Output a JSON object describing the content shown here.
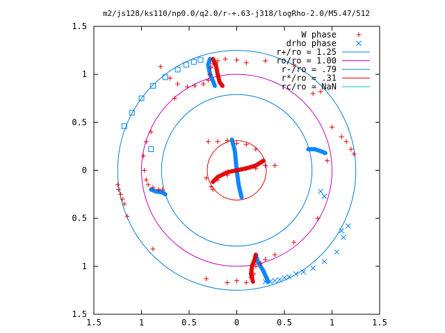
{
  "chart_data": {
    "type": "scatter",
    "title": "m2/js128/ks110/np0.0/q2.0/r-+.63-j318/logRho-2.0/M5.47/512",
    "xlim": [
      -1.5,
      1.5
    ],
    "ylim": [
      -1.5,
      1.5
    ],
    "x_ticks": [
      -1.5,
      -1,
      -0.5,
      0,
      0.5,
      1,
      1.5
    ],
    "x_tick_labels": [
      "1.5",
      "1",
      "0.5",
      "0",
      "0.5",
      "1",
      "1.5"
    ],
    "y_ticks": [
      1.5,
      1,
      0.5,
      0,
      -0.5,
      -1,
      -1.5
    ],
    "y_tick_labels": [
      "1.5",
      "1",
      "0.5",
      "0",
      "0.5",
      "1",
      "1.5"
    ],
    "grid": false,
    "legend_position": "top-right",
    "series": [
      {
        "name": "W phase",
        "marker": "plus",
        "color": "#e00000",
        "points": [
          [
            -0.8,
            1.08
          ],
          [
            -0.7,
            0.96
          ],
          [
            -0.62,
            0.9
          ],
          [
            -0.52,
            0.87
          ],
          [
            -0.44,
            0.88
          ],
          [
            -0.35,
            0.9
          ],
          [
            -0.3,
            0.94
          ],
          [
            -0.28,
            1.0
          ],
          [
            -0.27,
            1.07
          ],
          [
            -0.25,
            1.11
          ],
          [
            -0.2,
            1.14
          ],
          [
            -0.12,
            1.16
          ],
          [
            0.0,
            1.15
          ],
          [
            0.1,
            1.12
          ],
          [
            0.3,
            1.14
          ],
          [
            0.6,
            1.1
          ],
          [
            0.8,
            0.8
          ],
          [
            0.88,
            0.82
          ],
          [
            -0.65,
            0.75
          ],
          [
            -0.9,
            0.4
          ],
          [
            -0.95,
            0.3
          ],
          [
            -0.98,
            0.15
          ],
          [
            -0.97,
            0.0
          ],
          [
            -0.95,
            -0.1
          ],
          [
            -0.93,
            -0.15
          ],
          [
            -0.88,
            -0.18
          ],
          [
            -0.82,
            -0.2
          ],
          [
            -0.78,
            -0.2
          ],
          [
            -1.25,
            -0.15
          ],
          [
            -1.24,
            -0.2
          ],
          [
            -1.22,
            -0.25
          ],
          [
            -1.2,
            -0.3
          ],
          [
            -1.18,
            -0.35
          ],
          [
            -1.15,
            -0.48
          ],
          [
            -0.88,
            -0.82
          ],
          [
            -0.32,
            -1.13
          ],
          [
            -0.1,
            -1.17
          ],
          [
            0.0,
            -1.15
          ],
          [
            0.1,
            -1.17
          ],
          [
            0.15,
            -1.12
          ],
          [
            0.18,
            -1.08
          ],
          [
            0.2,
            -1.0
          ],
          [
            0.25,
            -0.97
          ],
          [
            0.3,
            -0.93
          ],
          [
            0.4,
            -0.88
          ],
          [
            0.6,
            -0.75
          ],
          [
            0.85,
            -0.5
          ],
          [
            1.0,
            0.45
          ],
          [
            1.1,
            0.35
          ],
          [
            1.15,
            0.3
          ],
          [
            1.2,
            0.22
          ],
          [
            1.23,
            0.17
          ],
          [
            0.95,
            0.1
          ],
          [
            -0.3,
            0.3
          ],
          [
            -0.2,
            0.3
          ],
          [
            -0.1,
            0.31
          ],
          [
            0.0,
            0.28
          ],
          [
            0.1,
            0.27
          ],
          [
            0.2,
            0.22
          ],
          [
            0.28,
            0.1
          ],
          [
            0.3,
            0.05
          ],
          [
            0.2,
            0.02
          ],
          [
            0.1,
            0.02
          ],
          [
            0.0,
            0.0
          ],
          [
            -0.1,
            -0.05
          ],
          [
            -0.2,
            -0.1
          ],
          [
            -0.25,
            -0.12
          ],
          [
            -0.27,
            -0.17
          ],
          [
            -0.25,
            -0.2
          ],
          [
            -0.32,
            -0.08
          ],
          [
            0.4,
            0.05
          ]
        ]
      },
      {
        "name": "drho phase",
        "marker": "cross",
        "color": "#0080ff",
        "points": [
          [
            0.3,
            -1.16
          ],
          [
            0.35,
            -1.16
          ],
          [
            0.4,
            -1.15
          ],
          [
            0.45,
            -1.14
          ],
          [
            0.5,
            -1.12
          ],
          [
            0.55,
            -1.11
          ],
          [
            0.62,
            -1.08
          ],
          [
            0.7,
            -1.06
          ],
          [
            0.8,
            -1.02
          ],
          [
            0.92,
            -0.95
          ],
          [
            1.05,
            -0.85
          ],
          [
            1.12,
            -0.7
          ],
          [
            1.17,
            -0.58
          ],
          [
            1.1,
            -0.63
          ],
          [
            0.88,
            -0.22
          ],
          [
            0.92,
            -0.27
          ]
        ]
      },
      {
        "name": "",
        "marker": "square",
        "color": "#0080ff",
        "points": [
          [
            -0.38,
            1.15
          ],
          [
            -0.45,
            1.13
          ],
          [
            -0.53,
            1.1
          ],
          [
            -0.62,
            1.05
          ],
          [
            -0.75,
            0.97
          ],
          [
            -0.88,
            0.88
          ],
          [
            -1.0,
            0.75
          ],
          [
            -1.1,
            0.6
          ],
          [
            -1.18,
            0.46
          ],
          [
            -0.9,
            0.22
          ]
        ]
      }
    ],
    "dense_curves": [
      {
        "name": "drho-band",
        "color": "#0080ff",
        "segments": [
          [
            [
              -0.05,
              0.32
            ],
            [
              -0.02,
              0.2
            ],
            [
              0.0,
              0.0
            ],
            [
              0.02,
              -0.15
            ],
            [
              0.05,
              -0.28
            ]
          ],
          [
            [
              -0.28,
              1.16
            ],
            [
              -0.3,
              1.1
            ],
            [
              -0.28,
              1.0
            ],
            [
              -0.25,
              0.93
            ],
            [
              -0.23,
              0.88
            ]
          ],
          [
            [
              0.2,
              -0.88
            ],
            [
              0.22,
              -0.95
            ],
            [
              0.25,
              -1.0
            ],
            [
              0.28,
              -1.05
            ],
            [
              0.33,
              -1.16
            ]
          ],
          [
            [
              -0.9,
              -0.2
            ],
            [
              -0.85,
              -0.22
            ],
            [
              -0.78,
              -0.23
            ],
            [
              -0.75,
              -0.25
            ]
          ],
          [
            [
              0.75,
              0.22
            ],
            [
              0.82,
              0.22
            ],
            [
              0.88,
              0.2
            ],
            [
              0.93,
              0.18
            ]
          ]
        ]
      },
      {
        "name": "W-band",
        "color": "#e00000",
        "segments": [
          [
            [
              -0.25,
              -0.12
            ],
            [
              -0.2,
              -0.07
            ],
            [
              -0.1,
              -0.02
            ],
            [
              0.0,
              0.0
            ],
            [
              0.1,
              0.02
            ],
            [
              0.2,
              0.05
            ],
            [
              0.28,
              0.1
            ]
          ],
          [
            [
              -0.25,
              1.16
            ],
            [
              -0.22,
              1.1
            ],
            [
              -0.2,
              1.0
            ],
            [
              -0.18,
              0.92
            ],
            [
              -0.15,
              0.88
            ]
          ],
          [
            [
              0.2,
              -0.88
            ],
            [
              0.18,
              -0.95
            ],
            [
              0.16,
              -1.0
            ],
            [
              0.15,
              -1.08
            ],
            [
              0.17,
              -1.16
            ]
          ]
        ]
      }
    ],
    "circles": [
      {
        "name": "r+/ro = 1.25",
        "radius": 1.25,
        "color": "#0080d0"
      },
      {
        "name": "ro/ro = 1.00",
        "radius": 1.0,
        "color": "#c000c0"
      },
      {
        "name": "r-/ro = .79",
        "radius": 0.79,
        "color": "#0080d0"
      },
      {
        "name": "r*/ro = .31",
        "radius": 0.31,
        "color": "#e00000"
      },
      {
        "name": "rc/ro = NaN",
        "radius": null,
        "color": "#00c0c0"
      }
    ],
    "legend": [
      {
        "label": "W phase",
        "style": "plus",
        "color": "#e00000"
      },
      {
        "label": "drho phase",
        "style": "cross",
        "color": "#0080ff"
      },
      {
        "label": "r+/ro = 1.25",
        "style": "line",
        "color": "#0080d0"
      },
      {
        "label": "ro/ro = 1.00",
        "style": "line",
        "color": "#c000c0"
      },
      {
        "label": "r-/ro = .79",
        "style": "line",
        "color": "#0080d0"
      },
      {
        "label": "r*/ro = .31",
        "style": "line",
        "color": "#e00000"
      },
      {
        "label": "rc/ro = NaN",
        "style": "line",
        "color": "#00c0c0"
      }
    ]
  }
}
